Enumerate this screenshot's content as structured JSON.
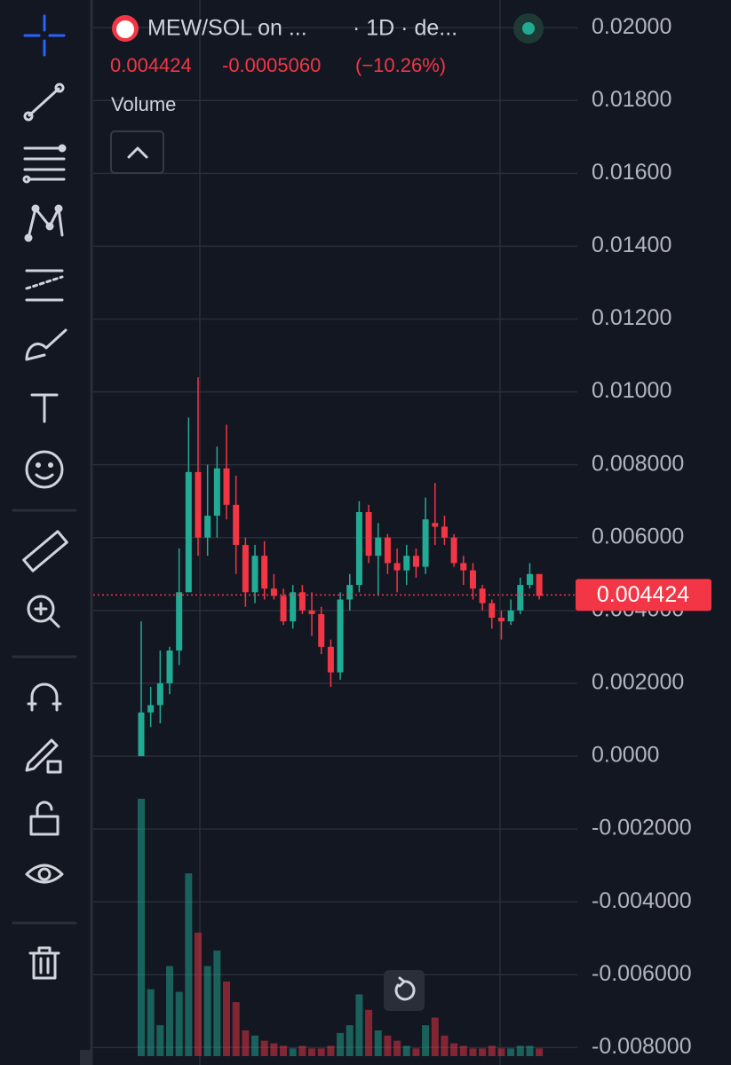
{
  "header": {
    "symbol": "MEW/SOL on ...",
    "interval": "· 1D · de...",
    "change": "-0.0005060",
    "change_percent": "(−10.26%)",
    "volume_label": "Volume"
  },
  "chart_data": {
    "type": "candlestick",
    "up_color": "#22ab94",
    "down_color": "#f23645",
    "open": [
      0,
      0.0012,
      0.0014,
      0.002,
      0.0029,
      0.0045,
      0.0078,
      0.006,
      0.0066,
      0.0079,
      0.0069,
      0.0058,
      0.0045,
      0.0055,
      0.0046,
      0.0044,
      0.0037,
      0.0045,
      0.004,
      0.0039,
      0.003,
      0.0023,
      0.0043,
      0.0047,
      0.0067,
      0.0055,
      0.006,
      0.0053,
      0.0051,
      0.0055,
      0.0052,
      0.0064,
      0.0063,
      0.006,
      0.0053,
      0.0051,
      0.0046,
      0.0042,
      0.0038,
      0.0037,
      0.004,
      0.0047,
      0.005
    ],
    "high": [
      0.0037,
      0.0019,
      0.0029,
      0.003,
      0.0057,
      0.0093,
      0.0104,
      0.008,
      0.0085,
      0.0091,
      0.0077,
      0.006,
      0.0058,
      0.0059,
      0.005,
      0.0046,
      0.0047,
      0.0047,
      0.0045,
      0.0041,
      0.0032,
      0.0045,
      0.005,
      0.007,
      0.0069,
      0.0064,
      0.0061,
      0.0057,
      0.0058,
      0.0057,
      0.0071,
      0.0075,
      0.0066,
      0.0061,
      0.0055,
      0.0053,
      0.0047,
      0.0043,
      0.004,
      0.0043,
      0.0049,
      0.0053,
      0.005
    ],
    "low": [
      0,
      0.0008,
      0.0009,
      0.0017,
      0.0025,
      0.0045,
      0.0055,
      0.0055,
      0.006,
      0.0065,
      0.005,
      0.0041,
      0.0042,
      0.0043,
      0.0043,
      0.0036,
      0.0035,
      0.0039,
      0.0033,
      0.0028,
      0.0019,
      0.0021,
      0.004,
      0.0045,
      0.0053,
      0.0044,
      0.005,
      0.0045,
      0.0047,
      0.0049,
      0.005,
      0.0058,
      0.0058,
      0.0052,
      0.0047,
      0.0043,
      0.004,
      0.0035,
      0.0032,
      0.0036,
      0.0039,
      0.0046,
      0.0043
    ],
    "close": [
      0.0012,
      0.0014,
      0.002,
      0.0029,
      0.0045,
      0.0078,
      0.006,
      0.0066,
      0.0079,
      0.0069,
      0.0058,
      0.0045,
      0.0055,
      0.0046,
      0.0044,
      0.0037,
      0.0045,
      0.004,
      0.0039,
      0.003,
      0.0023,
      0.0043,
      0.0047,
      0.0067,
      0.0055,
      0.006,
      0.0053,
      0.0051,
      0.0055,
      0.0052,
      0.0065,
      0.0063,
      0.006,
      0.0053,
      0.0051,
      0.0046,
      0.0042,
      0.0038,
      0.0037,
      0.004,
      0.0047,
      0.005,
      0.0044
    ],
    "volume": [
      100,
      26,
      12,
      35,
      25,
      71,
      48,
      35,
      41,
      29,
      21,
      10,
      8,
      6,
      5,
      4,
      3,
      4,
      3,
      3,
      4,
      9,
      12,
      24,
      18,
      10,
      8,
      6,
      4,
      3,
      12,
      15,
      8,
      5,
      4,
      3,
      3,
      4,
      3,
      3,
      4,
      4,
      3
    ],
    "last_price": 0.004424,
    "ylim": [
      -0.00848,
      0.02076
    ],
    "yticks": [
      {
        "value": 0.02,
        "label": "0.02000"
      },
      {
        "value": 0.018,
        "label": "0.01800"
      },
      {
        "value": 0.016,
        "label": "0.01600"
      },
      {
        "value": 0.014,
        "label": "0.01400"
      },
      {
        "value": 0.012,
        "label": "0.01200"
      },
      {
        "value": 0.01,
        "label": "0.01000"
      },
      {
        "value": 0.008,
        "label": "0.008000"
      },
      {
        "value": 0.006,
        "label": "0.006000"
      },
      {
        "value": 0.004,
        "label": "0.004000"
      },
      {
        "value": 0.002,
        "label": "0.002000"
      },
      {
        "value": 0,
        "label": "0.0000"
      },
      {
        "value": -0.002,
        "label": "-0.002000"
      },
      {
        "value": -0.004,
        "label": "-0.004000"
      },
      {
        "value": -0.006,
        "label": "-0.006000"
      },
      {
        "value": -0.008,
        "label": "-0.008000"
      }
    ],
    "grid": true
  }
}
